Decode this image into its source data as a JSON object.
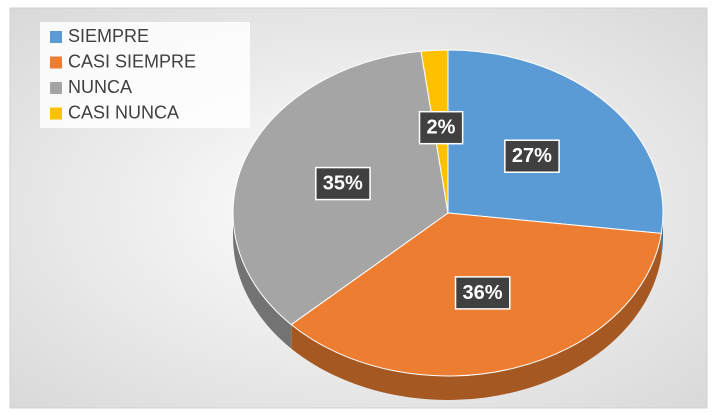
{
  "chart_data": {
    "type": "pie",
    "categories": [
      "SIEMPRE",
      "CASI SIEMPRE",
      "NUNCA",
      "CASI NUNCA"
    ],
    "values": [
      27,
      36,
      35,
      2
    ],
    "value_labels": [
      "27%",
      "36%",
      "35%",
      "2%"
    ],
    "colors": [
      "#5b9bd5",
      "#ed7d31",
      "#a5a5a5",
      "#ffc000"
    ],
    "legend": "top-left"
  }
}
